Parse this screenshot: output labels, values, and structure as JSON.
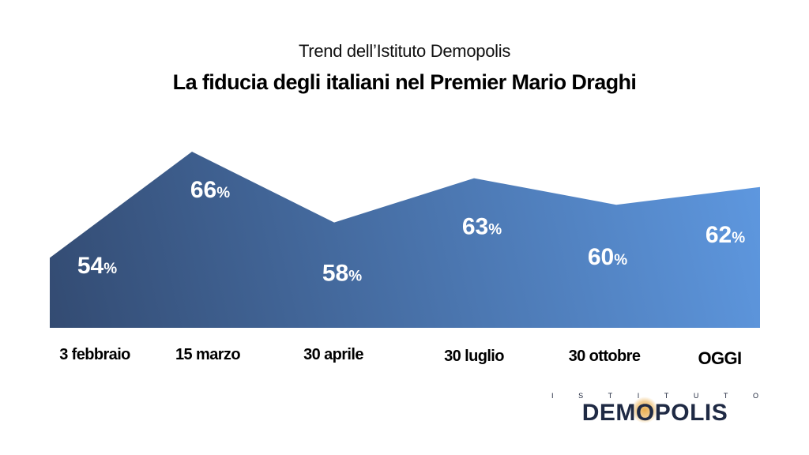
{
  "header": {
    "subtitle": "Trend dell’Istituto Demopolis",
    "title": "La fiducia degli italiani nel Premier Mario Draghi"
  },
  "chart_data": {
    "type": "area",
    "categories": [
      "3 febbraio",
      "15 marzo",
      "30 aprile",
      "30 luglio",
      "30 ottobre",
      "OGGI"
    ],
    "values": [
      54,
      66,
      58,
      63,
      60,
      62
    ],
    "value_suffix": "%",
    "series": [
      {
        "values": [
          54,
          66,
          58,
          63,
          60,
          62
        ]
      }
    ],
    "fill_gradient": [
      "#334b72",
      "#5e98e0"
    ]
  },
  "logo": {
    "top_text": "ISTITUTO",
    "main_text_pre": "DEM",
    "main_text_o": "O",
    "main_text_post": "POLIS"
  }
}
